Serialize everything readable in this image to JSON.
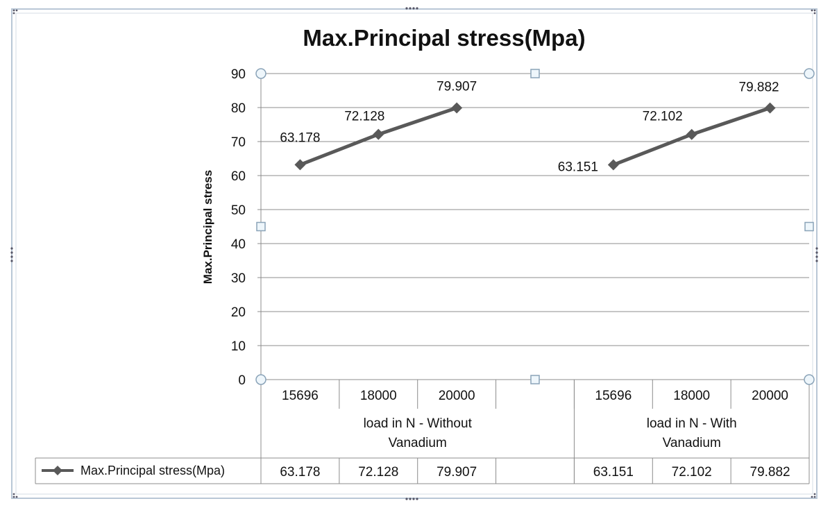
{
  "chart_data": {
    "type": "line",
    "title": "Max.Principal stress(Mpa)",
    "xlabel": "",
    "ylabel": "Max.Principal stress",
    "ylim": [
      0,
      90
    ],
    "ytick_step": 10,
    "grid": true,
    "legend": "bottom-left, inside data table",
    "groups": [
      {
        "label": "load in N - Without Vanadium",
        "categories": [
          "15696",
          "18000",
          "20000"
        ]
      },
      {
        "label": "load in N - With Vanadium",
        "categories": [
          "15696",
          "18000",
          "20000"
        ]
      }
    ],
    "categories": [
      "15696",
      "18000",
      "20000",
      "",
      "15696",
      "18000",
      "20000"
    ],
    "series": [
      {
        "name": "Max.Principal stress(Mpa)",
        "values": [
          63.178,
          72.128,
          79.907,
          null,
          63.151,
          72.102,
          79.882
        ],
        "labels": [
          "63.178",
          "72.128",
          "79.907",
          "",
          "63.151",
          "72.102",
          "79.882"
        ],
        "color": "#595959",
        "marker": "diamond"
      }
    ],
    "data_table": true
  }
}
